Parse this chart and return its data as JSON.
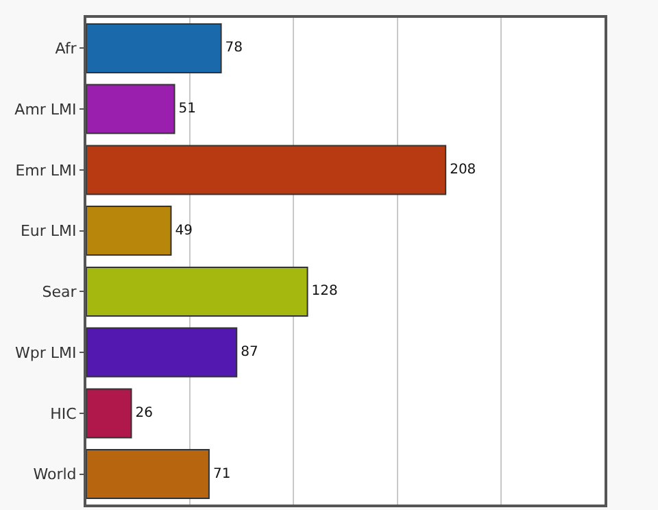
{
  "chart_data": {
    "type": "bar",
    "orientation": "horizontal",
    "categories": [
      "Afr",
      "Amr LMI",
      "Emr LMI",
      "Eur LMI",
      "Sear",
      "Wpr LMI",
      "HIC",
      "World"
    ],
    "values": [
      78,
      51,
      208,
      49,
      128,
      87,
      26,
      71
    ],
    "colors": [
      "#1a6aab",
      "#9a1fae",
      "#b83a12",
      "#b8860b",
      "#a5b80f",
      "#5218b0",
      "#b0174a",
      "#b8650f"
    ],
    "xlim": [
      0,
      300
    ],
    "xticks": [
      {
        "value": 0,
        "label": null
      },
      {
        "value": 60,
        "label": null
      },
      {
        "value": 120,
        "label": null
      },
      {
        "value": 180,
        "label": null
      },
      {
        "value": 240,
        "label": null
      },
      {
        "value": 300,
        "label": null
      }
    ],
    "grid": "x",
    "tick_labels": "y",
    "data_labels": true
  }
}
